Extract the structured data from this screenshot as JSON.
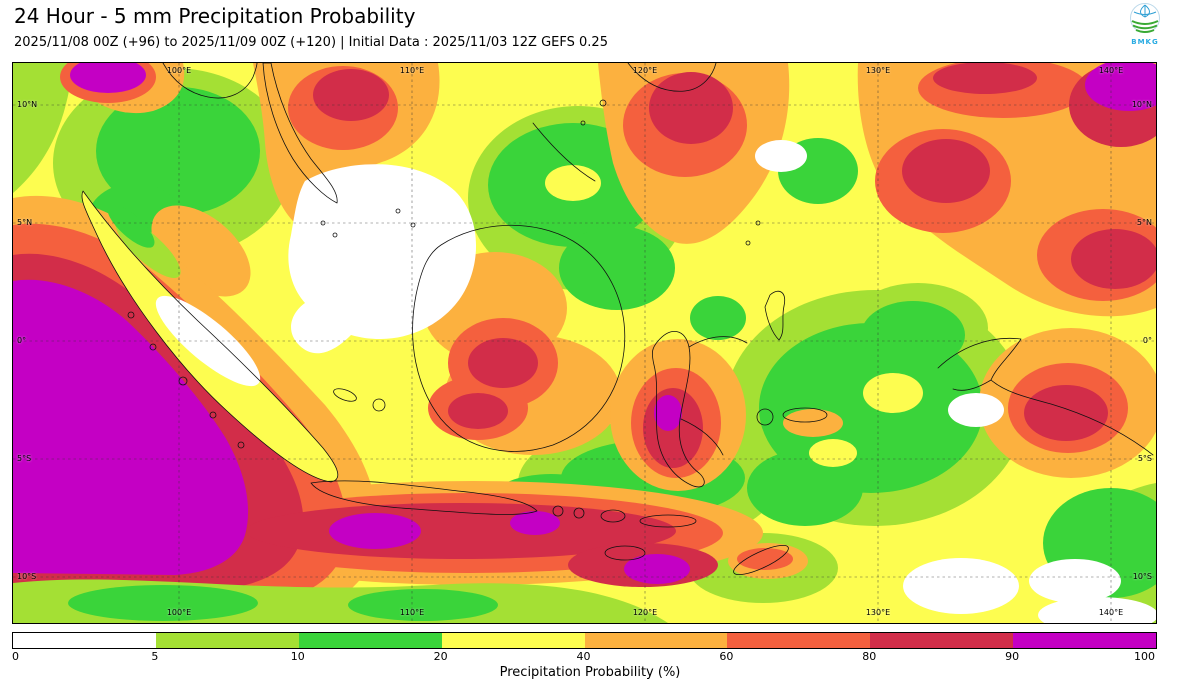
{
  "header": {
    "title": "24 Hour - 5 mm Precipitation Probability",
    "subtitle": "2025/11/08 00Z (+96) to 2025/11/09 00Z (+120) | Initial Data : 2025/11/03 12Z GEFS 0.25",
    "logo_label": "BMKG"
  },
  "map": {
    "lat_labels": [
      "10°N",
      "5°N",
      "0°",
      "5°S",
      "10°S"
    ],
    "lon_labels": [
      "100°E",
      "110°E",
      "120°E",
      "130°E",
      "140°E"
    ]
  },
  "legend": {
    "ticks": [
      0,
      5,
      10,
      20,
      40,
      60,
      80,
      90,
      100
    ],
    "colors": [
      "#ffffff",
      "#a4e034",
      "#3ad43a",
      "#fdfd50",
      "#fcb13f",
      "#f4603e",
      "#d22d49",
      "#c400c4"
    ],
    "axis_label": "Precipitation Probability (%)"
  }
}
